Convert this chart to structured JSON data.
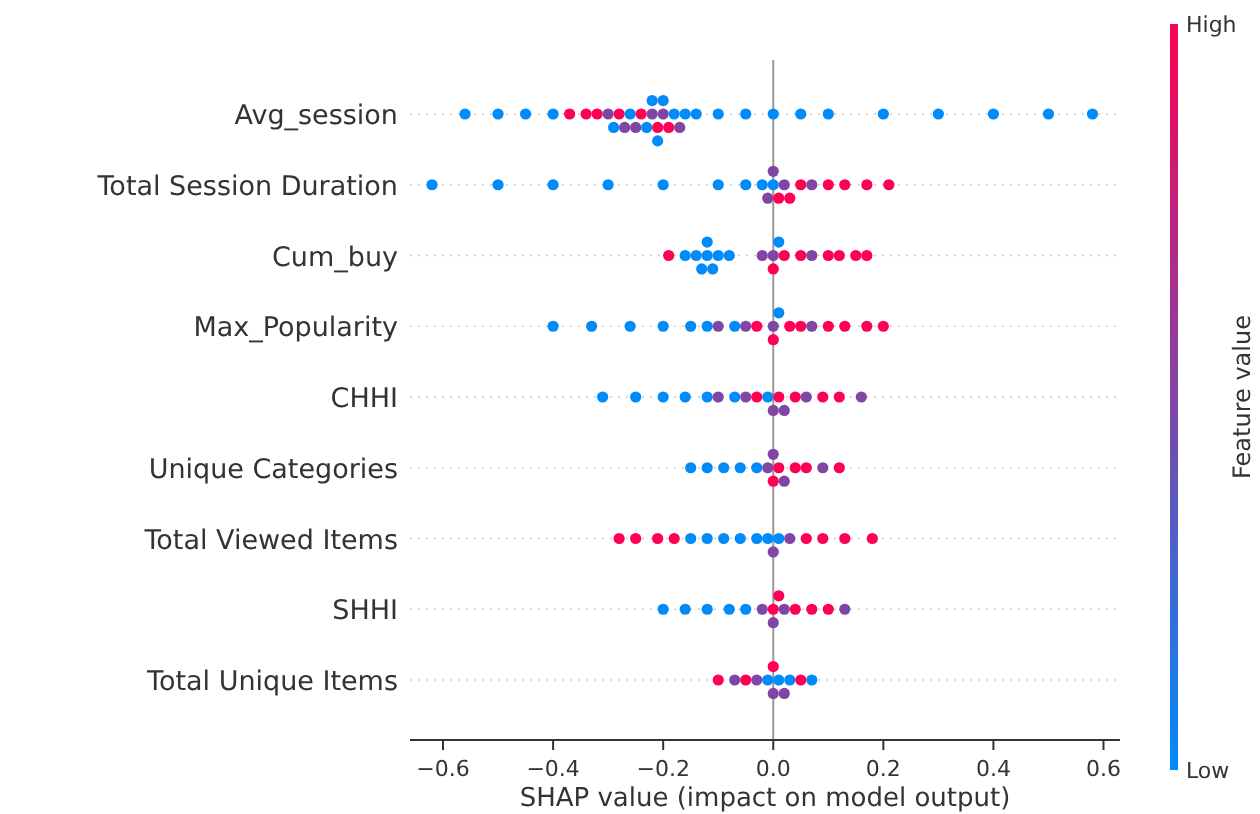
{
  "chart_data": {
    "type": "scatter",
    "orientation": "horizontal",
    "xlabel": "SHAP value (impact on model output)",
    "clabel": "Feature value",
    "categories": [
      "Avg_session",
      "Total Session Duration",
      "Cum_buy",
      "Max_Popularity",
      "CHHI",
      "Unique Categories",
      "Total Viewed Items",
      "SHHI",
      "Total Unique Items"
    ],
    "xlim": [
      -0.66,
      0.63
    ],
    "xticks": [
      {
        "value": -0.6,
        "label": "−0.6"
      },
      {
        "value": -0.4,
        "label": "−0.4"
      },
      {
        "value": -0.2,
        "label": "−0.2"
      },
      {
        "value": 0,
        "label": "0.0"
      },
      {
        "value": 0.2,
        "label": "0.2"
      },
      {
        "value": 0.4,
        "label": "0.4"
      },
      {
        "value": 0.6,
        "label": "0.6"
      }
    ],
    "clim": [
      0,
      1
    ],
    "cticks": [
      {
        "value": 0,
        "label": "Low"
      },
      {
        "value": 1,
        "label": "High"
      }
    ],
    "ref_lines": [
      {
        "axis": "x",
        "value": 0,
        "color": "#999999"
      }
    ],
    "grid": "y",
    "series": [
      {
        "x": [
          "Avg_session",
          "Avg_session",
          "Avg_session",
          "Avg_session",
          "Avg_session",
          "Avg_session",
          "Avg_session",
          "Avg_session",
          "Avg_session",
          "Avg_session",
          "Avg_session",
          "Avg_session",
          "Avg_session",
          "Avg_session",
          "Avg_session",
          "Avg_session",
          "Avg_session",
          "Avg_session",
          "Avg_session",
          "Avg_session",
          "Avg_session",
          "Avg_session",
          "Avg_session",
          "Avg_session",
          "Avg_session",
          "Avg_session",
          "Avg_session",
          "Avg_session",
          "Avg_session",
          "Avg_session",
          "Avg_session",
          "Avg_session",
          "Avg_session",
          "Avg_session",
          "Avg_session",
          "Avg_session"
        ],
        "values": [
          -0.56,
          -0.5,
          -0.45,
          -0.4,
          -0.37,
          -0.34,
          -0.32,
          -0.3,
          -0.29,
          -0.28,
          -0.27,
          -0.26,
          -0.25,
          -0.24,
          -0.23,
          -0.22,
          -0.22,
          -0.21,
          -0.21,
          -0.2,
          -0.2,
          -0.19,
          -0.18,
          -0.17,
          -0.16,
          -0.14,
          -0.1,
          -0.05,
          0,
          0.05,
          0.1,
          0.2,
          0.3,
          0.4,
          0.5,
          0.58
        ],
        "colors": [
          "#008bfb",
          "#008bfb",
          "#008bfb",
          "#008bfb",
          "#ff0052",
          "#ff0052",
          "#ff0052",
          "#7f46a6",
          "#008bfb",
          "#ff0052",
          "#7f46a6",
          "#008bfb",
          "#7f46a6",
          "#ff0052",
          "#008bfb",
          "#7f46a6",
          "#008bfb",
          "#ff0052",
          "#008bfb",
          "#7f46a6",
          "#008bfb",
          "#ff0052",
          "#008bfb",
          "#7f46a6",
          "#008bfb",
          "#008bfb",
          "#008bfb",
          "#008bfb",
          "#008bfb",
          "#008bfb",
          "#008bfb",
          "#008bfb",
          "#008bfb",
          "#008bfb",
          "#008bfb",
          "#008bfb"
        ]
      },
      {
        "x": [
          "Total Session Duration",
          "Total Session Duration",
          "Total Session Duration",
          "Total Session Duration",
          "Total Session Duration",
          "Total Session Duration",
          "Total Session Duration",
          "Total Session Duration",
          "Total Session Duration",
          "Total Session Duration",
          "Total Session Duration",
          "Total Session Duration",
          "Total Session Duration",
          "Total Session Duration",
          "Total Session Duration",
          "Total Session Duration",
          "Total Session Duration",
          "Total Session Duration",
          "Total Session Duration",
          "Total Session Duration"
        ],
        "values": [
          -0.62,
          -0.5,
          -0.4,
          -0.3,
          -0.2,
          -0.1,
          -0.05,
          -0.02,
          -0.01,
          0,
          0,
          0.01,
          0.02,
          0.03,
          0.05,
          0.07,
          0.1,
          0.13,
          0.17,
          0.21
        ],
        "colors": [
          "#008bfb",
          "#008bfb",
          "#008bfb",
          "#008bfb",
          "#008bfb",
          "#008bfb",
          "#008bfb",
          "#008bfb",
          "#7f46a6",
          "#008bfb",
          "#7f46a6",
          "#ff0052",
          "#7f46a6",
          "#ff0052",
          "#ff0052",
          "#7f46a6",
          "#ff0052",
          "#ff0052",
          "#ff0052",
          "#ff0052"
        ]
      },
      {
        "x": [
          "Cum_buy",
          "Cum_buy",
          "Cum_buy",
          "Cum_buy",
          "Cum_buy",
          "Cum_buy",
          "Cum_buy",
          "Cum_buy",
          "Cum_buy",
          "Cum_buy",
          "Cum_buy",
          "Cum_buy",
          "Cum_buy",
          "Cum_buy",
          "Cum_buy",
          "Cum_buy",
          "Cum_buy",
          "Cum_buy",
          "Cum_buy",
          "Cum_buy"
        ],
        "values": [
          -0.19,
          -0.16,
          -0.14,
          -0.13,
          -0.12,
          -0.12,
          -0.11,
          -0.1,
          -0.08,
          -0.02,
          0,
          0,
          0.01,
          0.02,
          0.05,
          0.07,
          0.1,
          0.12,
          0.15,
          0.17
        ],
        "colors": [
          "#ff0052",
          "#008bfb",
          "#008bfb",
          "#008bfb",
          "#008bfb",
          "#008bfb",
          "#008bfb",
          "#008bfb",
          "#008bfb",
          "#7f46a6",
          "#7f46a6",
          "#ff0052",
          "#008bfb",
          "#ff0052",
          "#ff0052",
          "#7f46a6",
          "#ff0052",
          "#ff0052",
          "#ff0052",
          "#ff0052"
        ]
      },
      {
        "x": [
          "Max_Popularity",
          "Max_Popularity",
          "Max_Popularity",
          "Max_Popularity",
          "Max_Popularity",
          "Max_Popularity",
          "Max_Popularity",
          "Max_Popularity",
          "Max_Popularity",
          "Max_Popularity",
          "Max_Popularity",
          "Max_Popularity",
          "Max_Popularity",
          "Max_Popularity",
          "Max_Popularity",
          "Max_Popularity",
          "Max_Popularity",
          "Max_Popularity",
          "Max_Popularity",
          "Max_Popularity"
        ],
        "values": [
          -0.4,
          -0.33,
          -0.26,
          -0.2,
          -0.15,
          -0.12,
          -0.1,
          -0.07,
          -0.05,
          -0.03,
          0,
          0,
          0.01,
          0.03,
          0.05,
          0.07,
          0.1,
          0.13,
          0.17,
          0.2
        ],
        "colors": [
          "#008bfb",
          "#008bfb",
          "#008bfb",
          "#008bfb",
          "#008bfb",
          "#008bfb",
          "#7f46a6",
          "#008bfb",
          "#7f46a6",
          "#ff0052",
          "#7f46a6",
          "#ff0052",
          "#008bfb",
          "#ff0052",
          "#ff0052",
          "#7f46a6",
          "#ff0052",
          "#ff0052",
          "#ff0052",
          "#ff0052"
        ]
      },
      {
        "x": [
          "CHHI",
          "CHHI",
          "CHHI",
          "CHHI",
          "CHHI",
          "CHHI",
          "CHHI",
          "CHHI",
          "CHHI",
          "CHHI",
          "CHHI",
          "CHHI",
          "CHHI",
          "CHHI",
          "CHHI",
          "CHHI",
          "CHHI",
          "CHHI"
        ],
        "values": [
          -0.31,
          -0.25,
          -0.2,
          -0.16,
          -0.12,
          -0.1,
          -0.07,
          -0.05,
          -0.03,
          -0.01,
          0,
          0.01,
          0.02,
          0.04,
          0.06,
          0.09,
          0.12,
          0.16
        ],
        "colors": [
          "#008bfb",
          "#008bfb",
          "#008bfb",
          "#008bfb",
          "#008bfb",
          "#7f46a6",
          "#008bfb",
          "#7f46a6",
          "#ff0052",
          "#008bfb",
          "#7f46a6",
          "#ff0052",
          "#7f46a6",
          "#ff0052",
          "#7f46a6",
          "#ff0052",
          "#ff0052",
          "#7f46a6"
        ]
      },
      {
        "x": [
          "Unique Categories",
          "Unique Categories",
          "Unique Categories",
          "Unique Categories",
          "Unique Categories",
          "Unique Categories",
          "Unique Categories",
          "Unique Categories",
          "Unique Categories",
          "Unique Categories",
          "Unique Categories",
          "Unique Categories",
          "Unique Categories",
          "Unique Categories"
        ],
        "values": [
          -0.15,
          -0.12,
          -0.09,
          -0.06,
          -0.03,
          -0.01,
          0,
          0,
          0.01,
          0.02,
          0.04,
          0.06,
          0.09,
          0.12
        ],
        "colors": [
          "#008bfb",
          "#008bfb",
          "#008bfb",
          "#008bfb",
          "#008bfb",
          "#7f46a6",
          "#ff0052",
          "#7f46a6",
          "#ff0052",
          "#7f46a6",
          "#ff0052",
          "#ff0052",
          "#7f46a6",
          "#ff0052"
        ]
      },
      {
        "x": [
          "Total Viewed Items",
          "Total Viewed Items",
          "Total Viewed Items",
          "Total Viewed Items",
          "Total Viewed Items",
          "Total Viewed Items",
          "Total Viewed Items",
          "Total Viewed Items",
          "Total Viewed Items",
          "Total Viewed Items",
          "Total Viewed Items",
          "Total Viewed Items",
          "Total Viewed Items",
          "Total Viewed Items",
          "Total Viewed Items",
          "Total Viewed Items",
          "Total Viewed Items"
        ],
        "values": [
          -0.28,
          -0.25,
          -0.21,
          -0.18,
          -0.15,
          -0.12,
          -0.09,
          -0.06,
          -0.03,
          -0.01,
          0,
          0.01,
          0.03,
          0.06,
          0.09,
          0.13,
          0.18
        ],
        "colors": [
          "#ff0052",
          "#ff0052",
          "#ff0052",
          "#ff0052",
          "#008bfb",
          "#008bfb",
          "#008bfb",
          "#008bfb",
          "#008bfb",
          "#008bfb",
          "#7f46a6",
          "#008bfb",
          "#7f46a6",
          "#ff0052",
          "#ff0052",
          "#ff0052",
          "#ff0052"
        ]
      },
      {
        "x": [
          "SHHI",
          "SHHI",
          "SHHI",
          "SHHI",
          "SHHI",
          "SHHI",
          "SHHI",
          "SHHI",
          "SHHI",
          "SHHI",
          "SHHI",
          "SHHI",
          "SHHI",
          "SHHI"
        ],
        "values": [
          -0.2,
          -0.16,
          -0.12,
          -0.08,
          -0.05,
          -0.02,
          0,
          0,
          0.01,
          0.02,
          0.04,
          0.07,
          0.1,
          0.13
        ],
        "colors": [
          "#008bfb",
          "#008bfb",
          "#008bfb",
          "#008bfb",
          "#008bfb",
          "#7f46a6",
          "#ff0052",
          "#7f46a6",
          "#ff0052",
          "#7f46a6",
          "#ff0052",
          "#ff0052",
          "#ff0052",
          "#7f46a6"
        ]
      },
      {
        "x": [
          "Total Unique Items",
          "Total Unique Items",
          "Total Unique Items",
          "Total Unique Items",
          "Total Unique Items",
          "Total Unique Items",
          "Total Unique Items",
          "Total Unique Items",
          "Total Unique Items",
          "Total Unique Items",
          "Total Unique Items",
          "Total Unique Items"
        ],
        "values": [
          -0.1,
          -0.07,
          -0.05,
          -0.03,
          -0.01,
          0,
          0,
          0.01,
          0.02,
          0.03,
          0.05,
          0.07
        ],
        "colors": [
          "#ff0052",
          "#7f46a6",
          "#ff0052",
          "#7f46a6",
          "#008bfb",
          "#7f46a6",
          "#ff0052",
          "#008bfb",
          "#7f46a6",
          "#008bfb",
          "#ff0052",
          "#008bfb"
        ]
      }
    ]
  }
}
